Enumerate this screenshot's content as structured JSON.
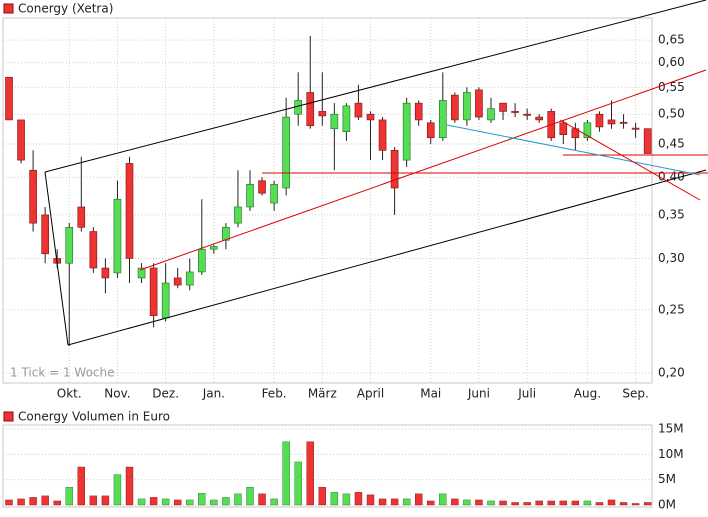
{
  "chart_data": [
    {
      "type": "candlestick",
      "title": "Conergy (Xetra)",
      "annotation": "1 Tick = 1 Woche",
      "categories": [
        null,
        null,
        null,
        null,
        null,
        "Okt.",
        null,
        null,
        null,
        "Nov.",
        null,
        null,
        null,
        "Dez.",
        null,
        null,
        null,
        "Jan.",
        null,
        null,
        null,
        null,
        "Feb.",
        null,
        null,
        null,
        "März",
        null,
        null,
        null,
        "April",
        null,
        null,
        null,
        null,
        "Mai",
        null,
        null,
        null,
        "Juni",
        null,
        null,
        null,
        "Juli",
        null,
        null,
        null,
        null,
        "Aug.",
        null,
        null,
        null,
        "Sep.",
        null
      ],
      "open": [
        0.57,
        0.49,
        0.41,
        0.35,
        0.3,
        0.295,
        0.36,
        0.33,
        0.29,
        0.285,
        0.42,
        0.28,
        0.29,
        0.243,
        0.28,
        0.273,
        0.286,
        0.31,
        0.32,
        0.34,
        0.36,
        0.395,
        0.365,
        0.385,
        0.5,
        0.54,
        0.505,
        0.475,
        0.47,
        0.52,
        0.5,
        0.49,
        0.44,
        0.425,
        0.52,
        0.485,
        0.46,
        0.535,
        0.49,
        0.545,
        0.49,
        0.52,
        0.505,
        0.5,
        0.495,
        0.505,
        0.485,
        0.475,
        0.46,
        0.5,
        0.49,
        0.486,
        0.476,
        0.475
      ],
      "high": [
        0.57,
        0.49,
        0.44,
        0.36,
        0.31,
        0.34,
        0.43,
        0.335,
        0.3,
        0.395,
        0.43,
        0.295,
        0.295,
        0.295,
        0.29,
        0.3,
        0.37,
        0.315,
        0.34,
        0.41,
        0.41,
        0.4,
        0.395,
        0.53,
        0.58,
        0.66,
        0.58,
        0.52,
        0.52,
        0.555,
        0.505,
        0.495,
        0.445,
        0.53,
        0.525,
        0.49,
        0.58,
        0.54,
        0.55,
        0.55,
        0.53,
        0.52,
        0.52,
        0.51,
        0.5,
        0.51,
        0.49,
        0.485,
        0.49,
        0.505,
        0.525,
        0.5,
        0.485,
        0.475
      ],
      "low": [
        0.49,
        0.42,
        0.33,
        0.295,
        0.29,
        0.22,
        0.33,
        0.285,
        0.265,
        0.28,
        0.275,
        0.275,
        0.235,
        0.24,
        0.27,
        0.268,
        0.283,
        0.305,
        0.31,
        0.335,
        0.355,
        0.375,
        0.355,
        0.375,
        0.48,
        0.475,
        0.48,
        0.41,
        0.455,
        0.49,
        0.425,
        0.425,
        0.35,
        0.415,
        0.48,
        0.45,
        0.455,
        0.485,
        0.48,
        0.49,
        0.485,
        0.49,
        0.495,
        0.49,
        0.485,
        0.455,
        0.45,
        0.44,
        0.455,
        0.47,
        0.475,
        0.475,
        0.46,
        0.435
      ],
      "close": [
        0.49,
        0.425,
        0.34,
        0.305,
        0.295,
        0.335,
        0.335,
        0.29,
        0.28,
        0.37,
        0.3,
        0.29,
        0.245,
        0.275,
        0.273,
        0.286,
        0.31,
        0.313,
        0.335,
        0.36,
        0.39,
        0.378,
        0.39,
        0.495,
        0.525,
        0.48,
        0.497,
        0.5,
        0.515,
        0.495,
        0.49,
        0.44,
        0.385,
        0.52,
        0.49,
        0.46,
        0.525,
        0.49,
        0.54,
        0.495,
        0.51,
        0.505,
        0.503,
        0.498,
        0.49,
        0.46,
        0.465,
        0.46,
        0.485,
        0.478,
        0.483,
        0.484,
        0.474,
        0.435
      ],
      "up_color": "#55dd55",
      "down_color": "#ee3333",
      "ylim": [
        0.193,
        0.703
      ],
      "log_scale": true,
      "grid": true,
      "yticks": [
        {
          "value": 0.2,
          "label": "0,20"
        },
        {
          "value": 0.25,
          "label": "0,25"
        },
        {
          "value": 0.3,
          "label": "0,30"
        },
        {
          "value": 0.35,
          "label": "0,35"
        },
        {
          "value": 0.4,
          "label": "0,40"
        },
        {
          "value": 0.45,
          "label": "0,45"
        },
        {
          "value": 0.5,
          "label": "0,50"
        },
        {
          "value": 0.55,
          "label": "0,55"
        },
        {
          "value": 0.6,
          "label": "0,60"
        },
        {
          "value": 0.65,
          "label": "0,65"
        }
      ]
    },
    {
      "type": "bar",
      "title": "Conergy Volumen in Euro",
      "values": [
        1000000,
        1200000,
        1500000,
        1800000,
        800000,
        3500000,
        7500000,
        1800000,
        1800000,
        6000000,
        7500000,
        1200000,
        1500000,
        1200000,
        1000000,
        1000000,
        2300000,
        1000000,
        1500000,
        2200000,
        3500000,
        2200000,
        1200000,
        12500000,
        8500000,
        12500000,
        3500000,
        2500000,
        2200000,
        2500000,
        2000000,
        1200000,
        1200000,
        1200000,
        2200000,
        800000,
        2200000,
        1200000,
        1000000,
        1000000,
        800000,
        800000,
        500000,
        500000,
        800000,
        800000,
        800000,
        800000,
        800000,
        500000,
        1000000,
        500000,
        300000,
        500000
      ],
      "ylim": [
        0,
        15800000
      ],
      "grid": true,
      "yticks": [
        {
          "value": 0,
          "label": "0M"
        },
        {
          "value": 5000000,
          "label": "5M"
        },
        {
          "value": 10000000,
          "label": "10M"
        },
        {
          "value": 15000000,
          "label": "15M"
        }
      ]
    }
  ]
}
